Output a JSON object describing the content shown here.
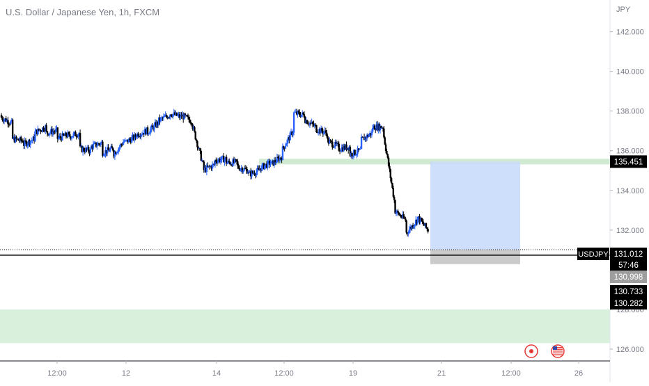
{
  "header": {
    "title": "U.S. Dollar / Japanese Yen, 1h, FXCM"
  },
  "axis": {
    "currency": "JPY"
  },
  "chart_data": {
    "type": "candlestick",
    "symbol": "USDJPY",
    "title": "U.S. Dollar / Japanese Yen, 1h, FXCM",
    "ylim": [
      125.4,
      143.6
    ],
    "y_ticks": [
      "142.000",
      "140.000",
      "138.000",
      "136.000",
      "134.000",
      "132.000",
      "128.000",
      "126.000"
    ],
    "x_ticks": [
      "12:00",
      "12",
      "14",
      "12:00",
      "19",
      "21",
      "12:00",
      "26"
    ],
    "price_path": [
      [
        137.8,
        137.7
      ],
      [
        137.4,
        136.6
      ],
      [
        136.5,
        136.3
      ],
      [
        136.6,
        136.9
      ],
      [
        137.2,
        136.9
      ],
      [
        137.0,
        136.6
      ],
      [
        136.8,
        136.7
      ],
      [
        136.9,
        136.1
      ],
      [
        136.0,
        136.2
      ],
      [
        136.4,
        135.9
      ],
      [
        136.1,
        135.8
      ],
      [
        136.5,
        136.4
      ],
      [
        136.7,
        136.8
      ],
      [
        137.0,
        136.9
      ],
      [
        137.4,
        137.5
      ],
      [
        137.8,
        137.9
      ],
      [
        137.7,
        137.8
      ],
      [
        137.5,
        137.4
      ],
      [
        135.3,
        135.0
      ],
      [
        135.3,
        135.5
      ],
      [
        135.6,
        135.4
      ],
      [
        135.4,
        135.2
      ],
      [
        135.0,
        134.8
      ],
      [
        135.0,
        135.1
      ],
      [
        135.4,
        135.3
      ],
      [
        135.7,
        136.0
      ],
      [
        137.0,
        137.9
      ],
      [
        137.8,
        137.6
      ],
      [
        137.2,
        137.1
      ],
      [
        136.9,
        136.5
      ],
      [
        136.2,
        136.1
      ],
      [
        136.2,
        135.8
      ],
      [
        136.0,
        136.5
      ],
      [
        136.9,
        137.2
      ],
      [
        137.2,
        137.0
      ],
      [
        133.5,
        133.0
      ],
      [
        132.5,
        131.8
      ],
      [
        132.5,
        132.7
      ],
      [
        132.0,
        131.2
      ]
    ],
    "series": [
      {
        "name": "USDJPY",
        "last": "131.012",
        "countdown": "57:46"
      }
    ],
    "price_labels": {
      "resistance": "135.451",
      "bid": "131.012",
      "countdown": "57:46",
      "stop": "130.998",
      "level_a": "130.733",
      "level_b": "130.282"
    },
    "levels": {
      "resistance": 135.451,
      "current": 131.012,
      "hline": 130.733
    },
    "position": {
      "entry": 131.012,
      "target": 135.451,
      "stop": 130.282
    },
    "support_zone": [
      126.3,
      128.0
    ],
    "colors": {
      "up": "#2962ff",
      "down": "#000000",
      "resistance_band": "#c8e6c9",
      "support_zone": "#d9f0dc",
      "target_box": "#c9dcfb",
      "stop_box": "#c5c5c5",
      "label_bg": "#000000",
      "stop_label_bg": "#9e9e9e"
    }
  },
  "events": [
    {
      "icon": "record-circle-icon",
      "color": "#e53935"
    },
    {
      "icon": "us-flag-icon",
      "color": "#e53935"
    }
  ]
}
